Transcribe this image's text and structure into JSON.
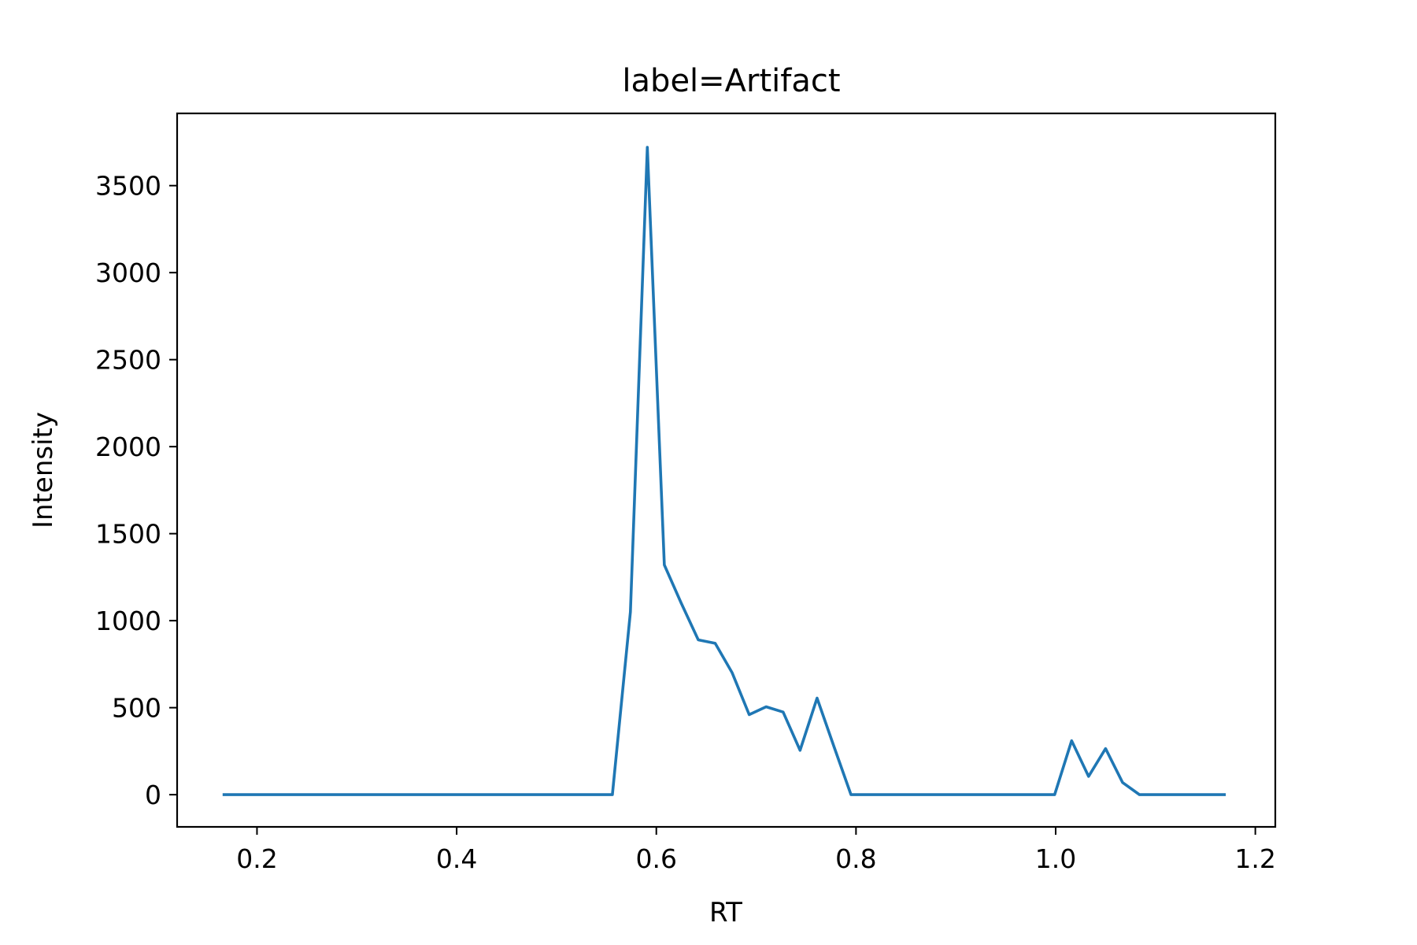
{
  "chart_data": {
    "type": "line",
    "title": "label=Artifact",
    "xlabel": "RT",
    "ylabel": "Intensity",
    "xlim": [
      0.12,
      1.22
    ],
    "ylim": [
      -185,
      3915
    ],
    "xticks": [
      0.2,
      0.4,
      0.6,
      0.8,
      1.0,
      1.2
    ],
    "xtick_labels": [
      "0.2",
      "0.4",
      "0.6",
      "0.8",
      "1.0",
      "1.2"
    ],
    "yticks": [
      0,
      500,
      1000,
      1500,
      2000,
      2500,
      3000,
      3500
    ],
    "ytick_labels": [
      "0",
      "500",
      "1000",
      "1500",
      "2000",
      "2500",
      "3000",
      "3500"
    ],
    "grid": false,
    "series": [
      {
        "color": "#1f77b4",
        "x": [
          0.167,
          0.184,
          0.201,
          0.218,
          0.235,
          0.252,
          0.268,
          0.285,
          0.302,
          0.319,
          0.336,
          0.353,
          0.37,
          0.387,
          0.403,
          0.42,
          0.437,
          0.454,
          0.471,
          0.488,
          0.505,
          0.522,
          0.539,
          0.556,
          0.574,
          0.591,
          0.608,
          0.625,
          0.642,
          0.659,
          0.676,
          0.693,
          0.71,
          0.727,
          0.744,
          0.761,
          0.778,
          0.795,
          0.812,
          0.829,
          0.846,
          0.863,
          0.88,
          0.897,
          0.914,
          0.931,
          0.948,
          0.965,
          0.982,
          0.999,
          1.016,
          1.033,
          1.05,
          1.067,
          1.084,
          1.101,
          1.118,
          1.135,
          1.152,
          1.169
        ],
        "y": [
          0,
          0,
          0,
          0,
          0,
          0,
          0,
          0,
          0,
          0,
          0,
          0,
          0,
          0,
          0,
          0,
          0,
          0,
          0,
          0,
          0,
          0,
          0,
          0,
          1050,
          3720,
          1320,
          1100,
          890,
          870,
          700,
          460,
          505,
          475,
          255,
          555,
          275,
          0,
          0,
          0,
          0,
          0,
          0,
          0,
          0,
          0,
          0,
          0,
          0,
          0,
          310,
          105,
          265,
          70,
          0,
          0,
          0,
          0,
          0,
          0
        ]
      }
    ]
  }
}
